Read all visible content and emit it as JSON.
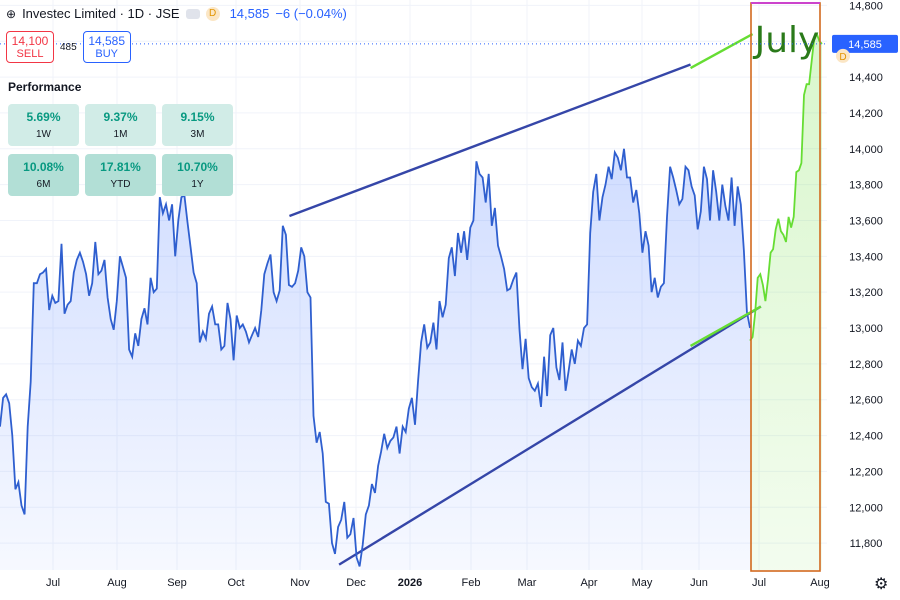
{
  "header": {
    "symbol": "Investec Limited · 1D · JSE",
    "last": "14,585",
    "change": "−6 (−0.04%)",
    "icons": [
      "globe-icon",
      "toggle-icon",
      "dividend-icon"
    ],
    "badge": "D"
  },
  "trade": {
    "sell_price": "14,100",
    "sell_label": "SELL",
    "spread": "485",
    "buy_price": "14,585",
    "buy_label": "BUY"
  },
  "performance": {
    "title": "Performance",
    "items": [
      {
        "value": "5.69%",
        "label": "1W"
      },
      {
        "value": "9.37%",
        "label": "1M"
      },
      {
        "value": "9.15%",
        "label": "3M"
      },
      {
        "value": "10.08%",
        "label": "6M"
      },
      {
        "value": "17.81%",
        "label": "YTD"
      },
      {
        "value": "10.70%",
        "label": "1Y"
      }
    ]
  },
  "chart_data": {
    "type": "area",
    "y_ticks": [
      "14,800",
      "14,600",
      "14,400",
      "14,200",
      "14,000",
      "13,800",
      "13,600",
      "13,400",
      "13,200",
      "13,000",
      "12,800",
      "12,600",
      "12,400",
      "12,200",
      "12,000",
      "11,800"
    ],
    "y_tick_values": [
      14800,
      14600,
      14400,
      14200,
      14000,
      13800,
      13600,
      13400,
      13200,
      13000,
      12800,
      12600,
      12400,
      12200,
      12000,
      11800
    ],
    "ylim": [
      11650,
      14830
    ],
    "x_ticks": [
      "Jul",
      "Aug",
      "Sep",
      "Oct",
      "Nov",
      "Dec",
      "2026",
      "Feb",
      "Mar",
      "Apr",
      "May",
      "Jun",
      "Jul",
      "Aug"
    ],
    "x_ticks_bold": [
      false,
      false,
      false,
      false,
      false,
      false,
      true,
      false,
      false,
      false,
      false,
      false,
      false,
      false
    ],
    "last_price_label": "14,585",
    "last_price": 14585,
    "annotation": "July",
    "colors": {
      "series": "#2f5fcf",
      "highlight": "#66dd33",
      "channel": "#3546a8",
      "box": "#d2691e",
      "box_top": "#cc44cc",
      "price_tag": "#2962ff"
    },
    "series": [
      {
        "values": [
          12450,
          12610,
          12630,
          12580,
          12400,
          12100,
          12140,
          12010,
          11960,
          12450,
          12700,
          13250,
          13250,
          13300,
          13310,
          13330,
          13100,
          13180,
          13140,
          13150,
          13470,
          13080,
          13130,
          13150,
          13310,
          13380,
          13420,
          13370,
          13300,
          13180,
          13250,
          13480,
          13300,
          13320,
          13380,
          13170,
          13050,
          12990,
          13150,
          13400,
          13340,
          13280,
          12880,
          12840,
          12970,
          12900,
          13050,
          13110,
          13020,
          13280,
          13200,
          13220,
          13730,
          13640,
          13690,
          13600,
          13690,
          13400,
          13600,
          13730,
          13740,
          13590,
          13450,
          13310,
          13250,
          12920,
          12980,
          12940,
          13080,
          13120,
          13020,
          13020,
          12880,
          12900,
          13140,
          13050,
          12820,
          13070,
          13000,
          13020,
          12980,
          12920,
          12960,
          13000,
          12950,
          13100,
          13300,
          13360,
          13410,
          13200,
          13150,
          13210,
          13570,
          13520,
          13240,
          13230,
          13250,
          13320,
          13450,
          13400,
          13200,
          13170,
          12510,
          12360,
          12420,
          12300,
          12030,
          12020,
          11800,
          11740,
          11890,
          11930,
          12030,
          11830,
          11850,
          11940,
          11720,
          11670,
          11790,
          11960,
          12010,
          12130,
          12080,
          12230,
          12310,
          12410,
          12330,
          12370,
          12390,
          12450,
          12300,
          12450,
          12420,
          12550,
          12610,
          12460,
          12700,
          12920,
          13020,
          12890,
          12920,
          13030,
          12880,
          13150,
          13060,
          13130,
          13390,
          13450,
          13290,
          13530,
          13420,
          13540,
          13380,
          13560,
          13600,
          13930,
          13860,
          13840,
          13700,
          13860,
          13570,
          13670,
          13460,
          13400,
          13330,
          13210,
          13220,
          13270,
          13310,
          12990,
          12770,
          12940,
          12720,
          12670,
          12650,
          12690,
          12560,
          12840,
          12620,
          12960,
          13000,
          12780,
          12710,
          12920,
          12650,
          12760,
          12880,
          12800,
          12930,
          12900,
          13000,
          13020,
          13530,
          13760,
          13860,
          13600,
          13730,
          13800,
          13900,
          13830,
          13980,
          13950,
          13880,
          14000,
          13840,
          13840,
          13700,
          13770,
          13640,
          13420,
          13540,
          13460,
          13200,
          13280,
          13170,
          13230,
          13250,
          13620,
          13900,
          13840,
          13770,
          13690,
          13720,
          13900,
          13880,
          13790,
          13740,
          13550,
          13650,
          13900,
          13830,
          13600,
          13880,
          13760,
          13600,
          13800,
          13680,
          13600,
          13840,
          13570,
          13790,
          13690,
          13430,
          13090,
          13000
        ],
        "segment": "pre"
      },
      {
        "values": [
          12930,
          12950,
          13080,
          13280,
          13300,
          13240,
          13150,
          13270,
          13420,
          13440,
          13550,
          13610,
          13540,
          13520,
          13480,
          13620,
          13560,
          13620,
          13870,
          13880,
          13920,
          14300,
          14360,
          14360,
          14490,
          14620,
          14640,
          14600,
          14585
        ],
        "segment": "july"
      }
    ],
    "channel_lines": [
      {
        "from": [
          0.35,
          13625
        ],
        "to": [
          0.835,
          14470
        ]
      },
      {
        "from": [
          0.41,
          11680
        ],
        "to": [
          0.92,
          13120
        ]
      }
    ],
    "july_trend": [
      {
        "from": [
          0.835,
          14450
        ],
        "to": [
          0.91,
          14640
        ]
      },
      {
        "from": [
          0.835,
          12900
        ],
        "to": [
          0.92,
          13120
        ]
      }
    ]
  }
}
